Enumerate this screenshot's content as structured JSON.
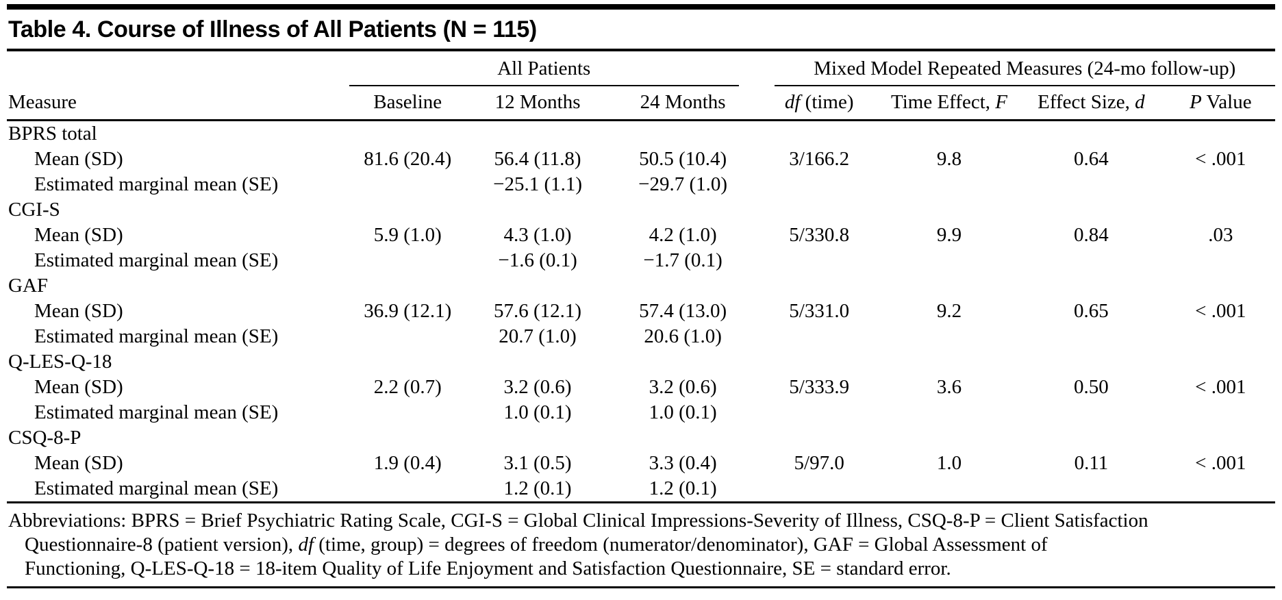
{
  "page": {
    "title": "Table 4. Course of Illness of All Patients (N = 115)"
  },
  "table": {
    "measure_header": "Measure",
    "spanners": [
      {
        "label": "All Patients",
        "cols": 3
      },
      {
        "label": "Mixed Model Repeated Measures (24-mo follow-up)",
        "cols": 4
      }
    ],
    "columns": [
      {
        "segments": [
          {
            "text": "Baseline",
            "italic": false
          }
        ]
      },
      {
        "segments": [
          {
            "text": "12 Months",
            "italic": false
          }
        ]
      },
      {
        "segments": [
          {
            "text": "24 Months",
            "italic": false
          }
        ]
      },
      {
        "segments": [
          {
            "text": "df",
            "italic": true
          },
          {
            "text": " (time)",
            "italic": false
          }
        ]
      },
      {
        "segments": [
          {
            "text": "Time Effect, ",
            "italic": false
          },
          {
            "text": "F",
            "italic": true
          }
        ]
      },
      {
        "segments": [
          {
            "text": "Effect Size, ",
            "italic": false
          },
          {
            "text": "d",
            "italic": true
          }
        ]
      },
      {
        "segments": [
          {
            "text": "P",
            "italic": true
          },
          {
            "text": " Value",
            "italic": false
          }
        ]
      }
    ],
    "groups": [
      {
        "name": "BPRS total",
        "rows": [
          {
            "label": "Mean (SD)",
            "values": [
              "81.6 (20.4)",
              "56.4 (11.8)",
              "50.5 (10.4)",
              "3/166.2",
              "9.8",
              "0.64",
              "< .001"
            ]
          },
          {
            "label": "Estimated marginal mean (SE)",
            "values": [
              "",
              "−25.1 (1.1)",
              "−29.7 (1.0)",
              "",
              "",
              "",
              ""
            ]
          }
        ]
      },
      {
        "name": "CGI-S",
        "rows": [
          {
            "label": "Mean (SD)",
            "values": [
              "5.9 (1.0)",
              "4.3 (1.0)",
              "4.2 (1.0)",
              "5/330.8",
              "9.9",
              "0.84",
              ".03"
            ]
          },
          {
            "label": "Estimated marginal mean (SE)",
            "values": [
              "",
              "−1.6 (0.1)",
              "−1.7 (0.1)",
              "",
              "",
              "",
              ""
            ]
          }
        ]
      },
      {
        "name": "GAF",
        "rows": [
          {
            "label": "Mean (SD)",
            "values": [
              "36.9 (12.1)",
              "57.6 (12.1)",
              "57.4 (13.0)",
              "5/331.0",
              "9.2",
              "0.65",
              "< .001"
            ]
          },
          {
            "label": "Estimated marginal mean (SE)",
            "values": [
              "",
              "20.7 (1.0)",
              "20.6 (1.0)",
              "",
              "",
              "",
              ""
            ]
          }
        ]
      },
      {
        "name": "Q-LES-Q-18",
        "rows": [
          {
            "label": "Mean (SD)",
            "values": [
              "2.2 (0.7)",
              "3.2 (0.6)",
              "3.2 (0.6)",
              "5/333.9",
              "3.6",
              "0.50",
              "< .001"
            ]
          },
          {
            "label": "Estimated marginal mean (SE)",
            "values": [
              "",
              "1.0 (0.1)",
              "1.0 (0.1)",
              "",
              "",
              "",
              ""
            ]
          }
        ]
      },
      {
        "name": "CSQ-8-P",
        "rows": [
          {
            "label": "Mean (SD)",
            "values": [
              "1.9 (0.4)",
              "3.1 (0.5)",
              "3.3 (0.4)",
              "5/97.0",
              "1.0",
              "0.11",
              "< .001"
            ]
          },
          {
            "label": "Estimated marginal mean (SE)",
            "values": [
              "",
              "1.2 (0.1)",
              "1.2 (0.1)",
              "",
              "",
              "",
              ""
            ]
          }
        ]
      }
    ],
    "footnote_lines": [
      [
        {
          "text": "Abbreviations: BPRS = Brief Psychiatric Rating Scale, CGI-S = Global Clinical Impressions-Severity of Illness, CSQ-8-P = Client Satisfaction",
          "italic": false
        }
      ],
      [
        {
          "text": "Questionnaire-8 (patient version), ",
          "italic": false
        },
        {
          "text": "df",
          "italic": true
        },
        {
          "text": " (time, group) = degrees of freedom (numerator/denominator), GAF = Global Assessment of",
          "italic": false
        }
      ],
      [
        {
          "text": "Functioning, Q-LES-Q-18 = 18-item Quality of Life Enjoyment and Satisfaction Questionnaire, SE = standard error.",
          "italic": false
        }
      ]
    ]
  }
}
